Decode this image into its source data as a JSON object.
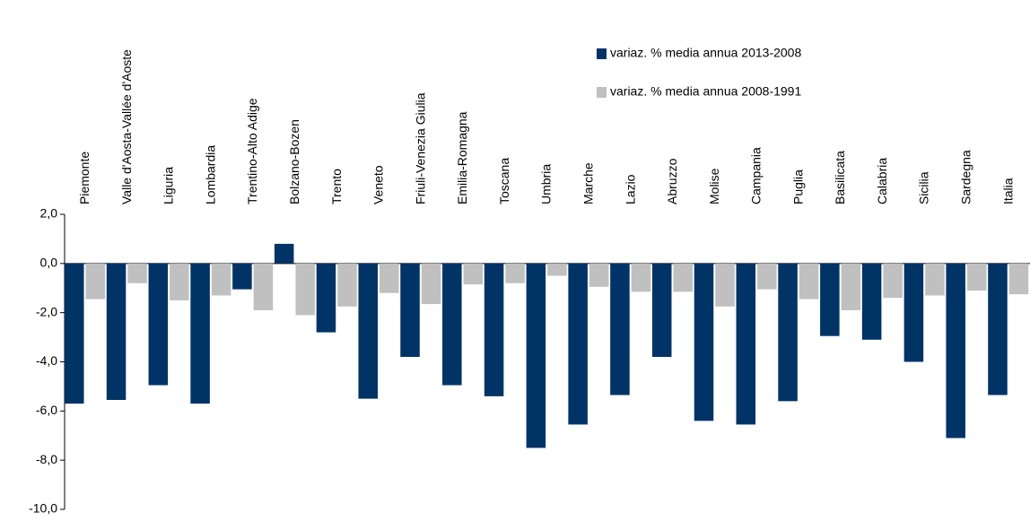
{
  "chart_data": {
    "type": "bar",
    "categories": [
      "Piemonte",
      "Valle d'Aosta-Vallée d'Aoste",
      "Liguria",
      "Lombardia",
      "Trentino-Alto Adige",
      "Bolzano-Bozen",
      "Trento",
      "Veneto",
      "Friuli-Venezia Giulia",
      "Emilia-Romagna",
      "Toscana",
      "Umbria",
      "Marche",
      "Lazio",
      "Abruzzo",
      "Molise",
      "Campania",
      "Puglia",
      "Basilicata",
      "Calabria",
      "Sicilia",
      "Sardegna",
      "Italia"
    ],
    "series": [
      {
        "name": "variaz. % media annua 2013-2008",
        "color": "#003366",
        "values": [
          -5.7,
          -5.55,
          -4.95,
          -5.7,
          -1.05,
          0.8,
          -2.8,
          -5.5,
          -3.8,
          -4.95,
          -5.4,
          -7.5,
          -6.55,
          -5.35,
          -3.8,
          -6.4,
          -6.55,
          -5.6,
          -2.95,
          -3.1,
          -4.0,
          -7.1,
          -5.35
        ]
      },
      {
        "name": "variaz. % media annua 2008-1991",
        "color": "#c0c0c0",
        "values": [
          -1.45,
          -0.8,
          -1.5,
          -1.3,
          -1.9,
          -2.1,
          -1.75,
          -1.2,
          -1.65,
          -0.85,
          -0.8,
          -0.5,
          -0.95,
          -1.15,
          -1.15,
          -1.75,
          -1.05,
          -1.45,
          -1.9,
          -1.4,
          -1.3,
          -1.1,
          -1.25
        ]
      }
    ],
    "ylim": [
      -10,
      2
    ],
    "yticks": [
      {
        "value": -10,
        "label": "-10,0"
      },
      {
        "value": -8,
        "label": "-8,0"
      },
      {
        "value": -6,
        "label": "-6,0"
      },
      {
        "value": -4,
        "label": "-4,0"
      },
      {
        "value": -2,
        "label": "-2,0"
      },
      {
        "value": 0,
        "label": "0,0"
      },
      {
        "value": 2,
        "label": "2,0"
      }
    ],
    "legend": "top-right"
  }
}
